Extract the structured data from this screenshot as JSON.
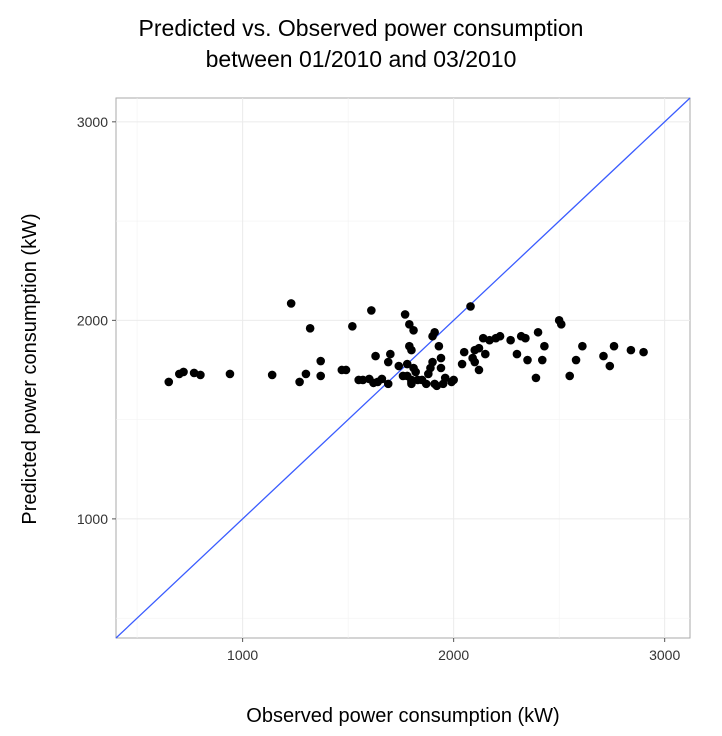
{
  "chart_data": {
    "type": "scatter",
    "title": [
      "Predicted vs. Observed power consumption",
      "between 01/2010 and 03/2010"
    ],
    "xlabel": "Observed power consumption (kW)",
    "ylabel": "Predicted power consumption (kW)",
    "xlim": [
      400,
      3120
    ],
    "ylim": [
      400,
      3120
    ],
    "xticks": [
      1000,
      2000,
      3000
    ],
    "yticks": [
      1000,
      2000,
      3000
    ],
    "grid": true,
    "reference_line": {
      "slope": 1,
      "intercept": 0,
      "color": "#3a5cff"
    },
    "point_color": "#000000",
    "points": [
      [
        650,
        1690
      ],
      [
        700,
        1730
      ],
      [
        720,
        1740
      ],
      [
        770,
        1735
      ],
      [
        800,
        1725
      ],
      [
        940,
        1730
      ],
      [
        1140,
        1725
      ],
      [
        1230,
        2085
      ],
      [
        1270,
        1690
      ],
      [
        1300,
        1730
      ],
      [
        1320,
        1960
      ],
      [
        1370,
        1795
      ],
      [
        1370,
        1720
      ],
      [
        1470,
        1750
      ],
      [
        1490,
        1750
      ],
      [
        1520,
        1970
      ],
      [
        1550,
        1700
      ],
      [
        1570,
        1700
      ],
      [
        1600,
        1705
      ],
      [
        1610,
        2050
      ],
      [
        1620,
        1685
      ],
      [
        1630,
        1820
      ],
      [
        1640,
        1690
      ],
      [
        1660,
        1705
      ],
      [
        1690,
        1680
      ],
      [
        1690,
        1790
      ],
      [
        1700,
        1830
      ],
      [
        1740,
        1770
      ],
      [
        1760,
        1720
      ],
      [
        1770,
        2030
      ],
      [
        1780,
        1780
      ],
      [
        1780,
        1720
      ],
      [
        1790,
        1980
      ],
      [
        1790,
        1870
      ],
      [
        1800,
        1680
      ],
      [
        1800,
        1690
      ],
      [
        1800,
        1700
      ],
      [
        1800,
        1850
      ],
      [
        1810,
        1950
      ],
      [
        1810,
        1760
      ],
      [
        1820,
        1740
      ],
      [
        1830,
        1700
      ],
      [
        1850,
        1700
      ],
      [
        1870,
        1680
      ],
      [
        1880,
        1730
      ],
      [
        1890,
        1760
      ],
      [
        1900,
        1920
      ],
      [
        1900,
        1790
      ],
      [
        1910,
        1940
      ],
      [
        1910,
        1680
      ],
      [
        1920,
        1670
      ],
      [
        1930,
        1870
      ],
      [
        1940,
        1810
      ],
      [
        1940,
        1760
      ],
      [
        1950,
        1680
      ],
      [
        1960,
        1710
      ],
      [
        1990,
        1690
      ],
      [
        2000,
        1700
      ],
      [
        2040,
        1780
      ],
      [
        2050,
        1840
      ],
      [
        2080,
        2070
      ],
      [
        2090,
        1810
      ],
      [
        2100,
        1790
      ],
      [
        2100,
        1850
      ],
      [
        2120,
        1860
      ],
      [
        2120,
        1750
      ],
      [
        2140,
        1910
      ],
      [
        2150,
        1830
      ],
      [
        2170,
        1900
      ],
      [
        2200,
        1910
      ],
      [
        2220,
        1920
      ],
      [
        2270,
        1900
      ],
      [
        2300,
        1830
      ],
      [
        2320,
        1920
      ],
      [
        2340,
        1910
      ],
      [
        2350,
        1800
      ],
      [
        2390,
        1710
      ],
      [
        2400,
        1940
      ],
      [
        2420,
        1800
      ],
      [
        2430,
        1870
      ],
      [
        2500,
        2000
      ],
      [
        2510,
        1980
      ],
      [
        2550,
        1720
      ],
      [
        2580,
        1800
      ],
      [
        2610,
        1870
      ],
      [
        2710,
        1820
      ],
      [
        2740,
        1770
      ],
      [
        2760,
        1870
      ],
      [
        2840,
        1850
      ],
      [
        2900,
        1840
      ]
    ]
  }
}
